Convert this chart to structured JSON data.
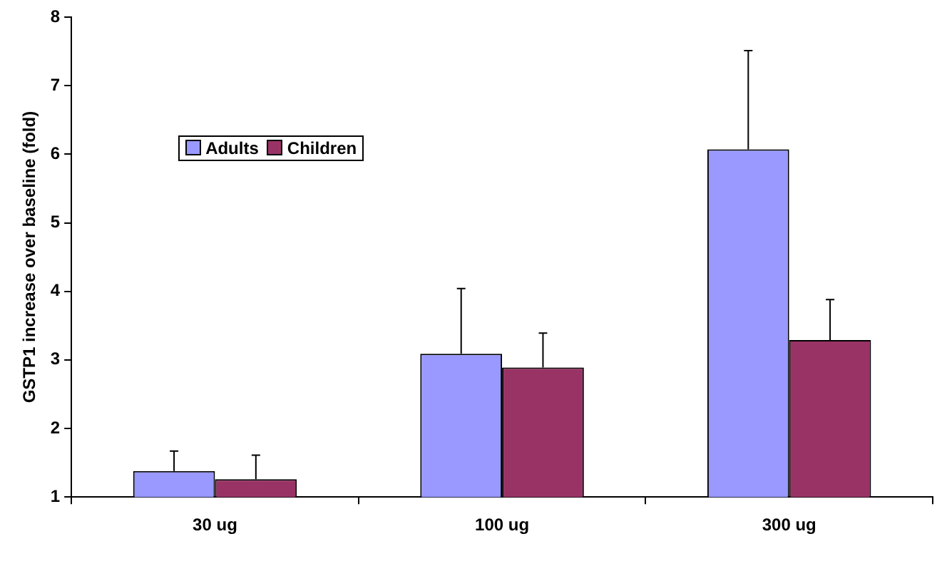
{
  "chart_data": {
    "type": "bar",
    "ylabel": "GSTP1 increase over baseline (fold)",
    "categories": [
      "30 ug",
      "100 ug",
      "300 ug"
    ],
    "series": [
      {
        "name": "Adults",
        "color": "#9999ff",
        "values": [
          1.38,
          3.09,
          6.07
        ],
        "errors": [
          [
            1.38,
            1.67
          ],
          [
            3.09,
            4.04
          ],
          [
            6.07,
            7.51
          ]
        ]
      },
      {
        "name": "Children",
        "color": "#993366",
        "values": [
          1.26,
          2.89,
          3.29
        ],
        "errors": [
          [
            1.26,
            1.61
          ],
          [
            2.89,
            3.39
          ],
          [
            3.29,
            3.88
          ]
        ]
      }
    ],
    "ylim": [
      1,
      8
    ],
    "yticks": [
      1,
      2,
      3,
      4,
      5,
      6,
      7,
      8
    ],
    "grid": false,
    "legend": "top left"
  }
}
